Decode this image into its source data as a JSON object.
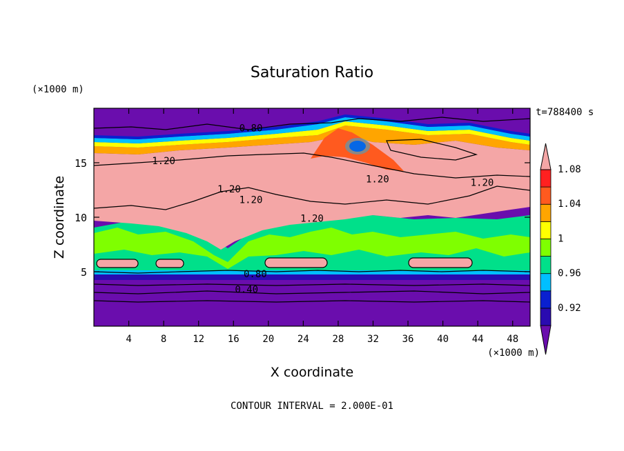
{
  "chart_data": {
    "type": "heatmap",
    "title": "Saturation Ratio",
    "xlabel": "X coordinate",
    "ylabel": "Z coordinate",
    "x_unit": "(×1000 m)",
    "y_unit": "(×1000 m)",
    "xlim": [
      0,
      50
    ],
    "ylim": [
      0,
      20
    ],
    "x_ticks": [
      4,
      8,
      12,
      16,
      20,
      24,
      28,
      32,
      36,
      40,
      44,
      48
    ],
    "y_ticks": [
      5,
      10,
      15
    ],
    "time_label": "t=788400 s",
    "footer": "CONTOUR INTERVAL = 2.000E-01",
    "colorbar": {
      "labels": [
        "1.08",
        "1.04",
        "1",
        "0.96",
        "0.92"
      ],
      "levels": [
        0.92,
        0.94,
        0.96,
        0.98,
        1.0,
        1.02,
        1.04,
        1.06,
        1.08,
        1.1
      ],
      "colors": [
        "#6a0dad",
        "#2a0bb0",
        "#0a20d0",
        "#00bfff",
        "#00e08a",
        "#7fff00",
        "#ffff00",
        "#ffa500",
        "#ff5a1f",
        "#ff2020",
        "#f4a6a6"
      ]
    },
    "contour_labels": [
      {
        "text": "0.80",
        "x": 18,
        "z": 18.2
      },
      {
        "text": "1.20",
        "x": 8,
        "z": 15.2
      },
      {
        "text": "1.20",
        "x": 15.5,
        "z": 12.6
      },
      {
        "text": "1.20",
        "x": 18,
        "z": 11.6
      },
      {
        "text": "1.20",
        "x": 25,
        "z": 9.9
      },
      {
        "text": "1.20",
        "x": 32.5,
        "z": 13.5
      },
      {
        "text": "1.20",
        "x": 44.5,
        "z": 13.2
      },
      {
        "text": "0.80",
        "x": 18.5,
        "z": 4.8
      },
      {
        "text": "0.40",
        "x": 17.5,
        "z": 3.4
      }
    ]
  }
}
